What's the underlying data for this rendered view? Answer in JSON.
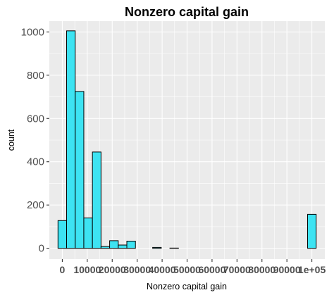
{
  "chart_data": {
    "type": "bar",
    "title": "Nonzero capital gain",
    "xlabel": "Nonzero capital gain",
    "ylabel": "count",
    "x_tick_labels": [
      "0",
      "10000",
      "20000",
      "30000",
      "40000",
      "50000",
      "60000",
      "70000",
      "80000",
      "90000",
      "1e+05"
    ],
    "x_tick_values": [
      0,
      10000,
      20000,
      30000,
      40000,
      50000,
      60000,
      70000,
      80000,
      90000,
      100000
    ],
    "y_tick_labels": [
      "0",
      "200",
      "400",
      "600",
      "800",
      "1000"
    ],
    "y_tick_values": [
      0,
      200,
      400,
      600,
      800,
      1000
    ],
    "xlim": [
      -5200,
      105200
    ],
    "ylim": [
      -50,
      1050
    ],
    "bin_width": 3448,
    "bins": [
      {
        "center": 0,
        "count": 128
      },
      {
        "center": 3448,
        "count": 1005
      },
      {
        "center": 6897,
        "count": 725
      },
      {
        "center": 10345,
        "count": 140
      },
      {
        "center": 13793,
        "count": 445
      },
      {
        "center": 17241,
        "count": 8
      },
      {
        "center": 20690,
        "count": 35
      },
      {
        "center": 24138,
        "count": 15
      },
      {
        "center": 27586,
        "count": 33
      },
      {
        "center": 31034,
        "count": 0
      },
      {
        "center": 34483,
        "count": 0
      },
      {
        "center": 37931,
        "count": 4
      },
      {
        "center": 41379,
        "count": 0
      },
      {
        "center": 44828,
        "count": 1
      },
      {
        "center": 48276,
        "count": 0
      },
      {
        "center": 51724,
        "count": 0
      },
      {
        "center": 55172,
        "count": 0
      },
      {
        "center": 58621,
        "count": 0
      },
      {
        "center": 62069,
        "count": 0
      },
      {
        "center": 65517,
        "count": 0
      },
      {
        "center": 68966,
        "count": 0
      },
      {
        "center": 72414,
        "count": 0
      },
      {
        "center": 75862,
        "count": 0
      },
      {
        "center": 79310,
        "count": 0
      },
      {
        "center": 82759,
        "count": 0
      },
      {
        "center": 86207,
        "count": 0
      },
      {
        "center": 89655,
        "count": 0
      },
      {
        "center": 93103,
        "count": 0
      },
      {
        "center": 96552,
        "count": 0
      },
      {
        "center": 100000,
        "count": 157
      }
    ],
    "bar_fill": "#3de3f2",
    "bar_outline": "#000000",
    "panel_background": "#ebebeb",
    "grid": true,
    "legend": "none"
  }
}
